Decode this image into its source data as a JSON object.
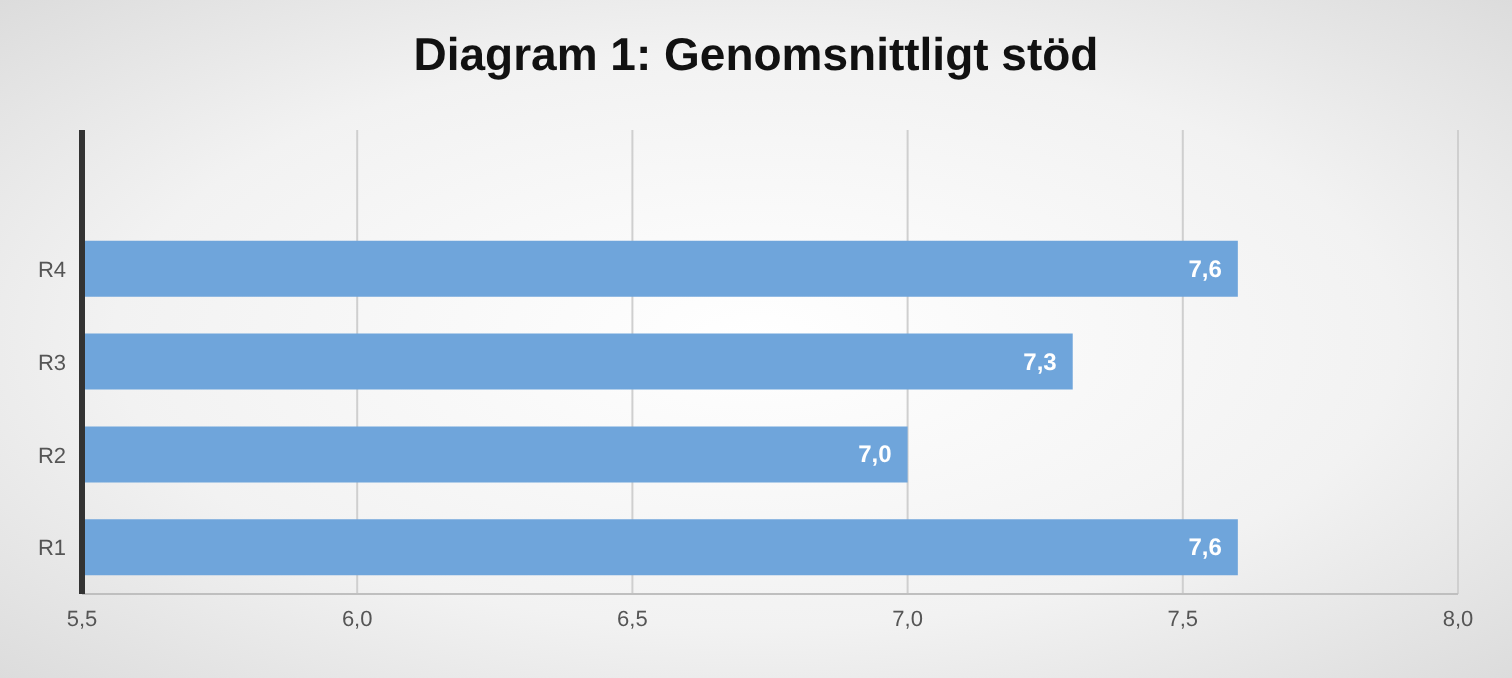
{
  "chart_data": {
    "type": "bar",
    "orientation": "horizontal",
    "title": "Diagram 1: Genomsnittligt stöd",
    "categories": [
      null,
      "R4",
      "R3",
      "R2",
      "R1"
    ],
    "values": [
      null,
      7.6,
      7.3,
      7.0,
      7.6
    ],
    "value_labels": [
      null,
      "7,6",
      "7,3",
      "7,0",
      "7,6"
    ],
    "color": "#6fa5db",
    "xlim": [
      5.5,
      8.0
    ],
    "xticks": [
      {
        "value": 5.5,
        "label": "5,5"
      },
      {
        "value": 6.0,
        "label": "6,0"
      },
      {
        "value": 6.5,
        "label": "6,5"
      },
      {
        "value": 7.0,
        "label": "7,0"
      },
      {
        "value": 7.5,
        "label": "7,5"
      },
      {
        "value": 8.0,
        "label": "8,0"
      }
    ],
    "grid": "x",
    "legend": false
  }
}
